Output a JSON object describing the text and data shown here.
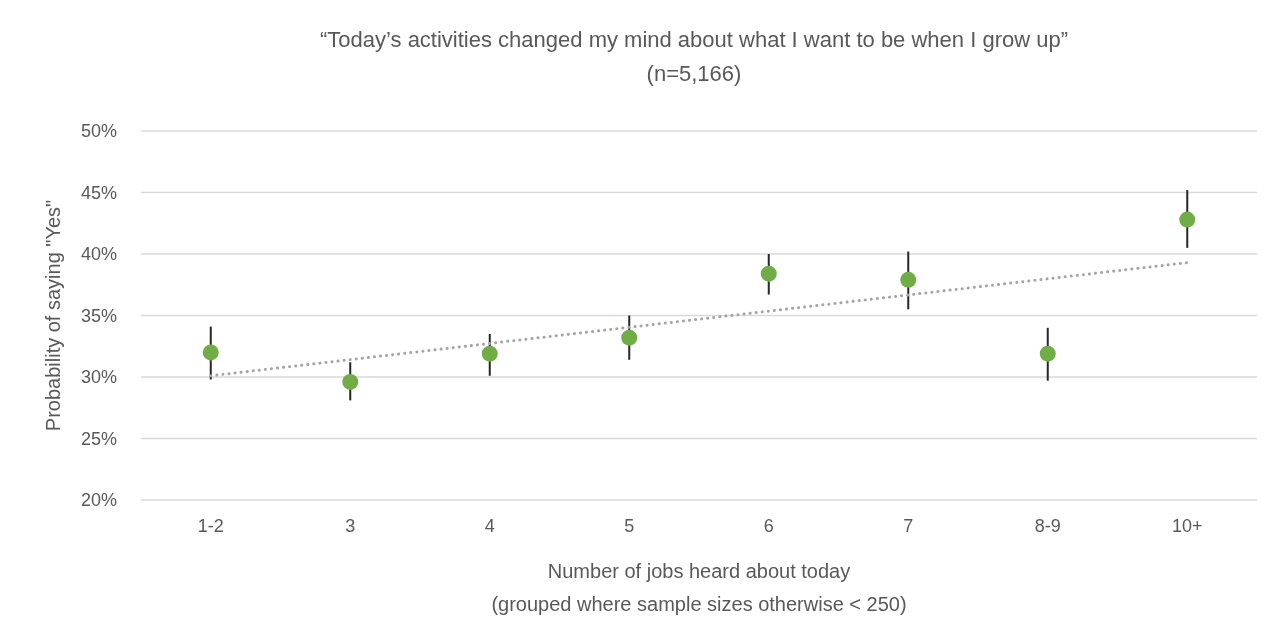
{
  "chart_data": {
    "type": "scatter",
    "title": "“Today’s activities changed my mind about what I want to be when I grow up”\n(n=5,166)",
    "xlabel": "Number of jobs heard about today\n(grouped where sample sizes otherwise < 250)",
    "ylabel": "Probability of saying \"Yes\"",
    "categories": [
      "1-2",
      "3",
      "4",
      "5",
      "6",
      "7",
      "8-9",
      "10+"
    ],
    "series": [
      {
        "color": "#70ad47",
        "marker": "circle",
        "values": [
          32.0,
          29.6,
          31.9,
          33.2,
          38.4,
          37.9,
          31.9,
          42.8
        ],
        "errors": [
          [
            29.8,
            34.1
          ],
          [
            28.1,
            31.2
          ],
          [
            30.1,
            33.5
          ],
          [
            31.4,
            35.0
          ],
          [
            36.7,
            40.0
          ],
          [
            35.5,
            40.2
          ],
          [
            29.7,
            34.0
          ],
          [
            40.5,
            45.2
          ]
        ]
      },
      {
        "type": "line",
        "color": "#a5a5a5",
        "line_style": "dotted",
        "marker": "none",
        "x": [
          "1-2",
          "10+"
        ],
        "values": [
          30.1,
          39.3
        ]
      }
    ],
    "ylim": [
      20,
      50
    ],
    "yticks": [
      {
        "value": 20,
        "label": "20%"
      },
      {
        "value": 25,
        "label": "25%"
      },
      {
        "value": 30,
        "label": "30%"
      },
      {
        "value": 35,
        "label": "35%"
      },
      {
        "value": 40,
        "label": "40%"
      },
      {
        "value": 45,
        "label": "45%"
      },
      {
        "value": 50,
        "label": "50%"
      }
    ],
    "grid": "y"
  }
}
